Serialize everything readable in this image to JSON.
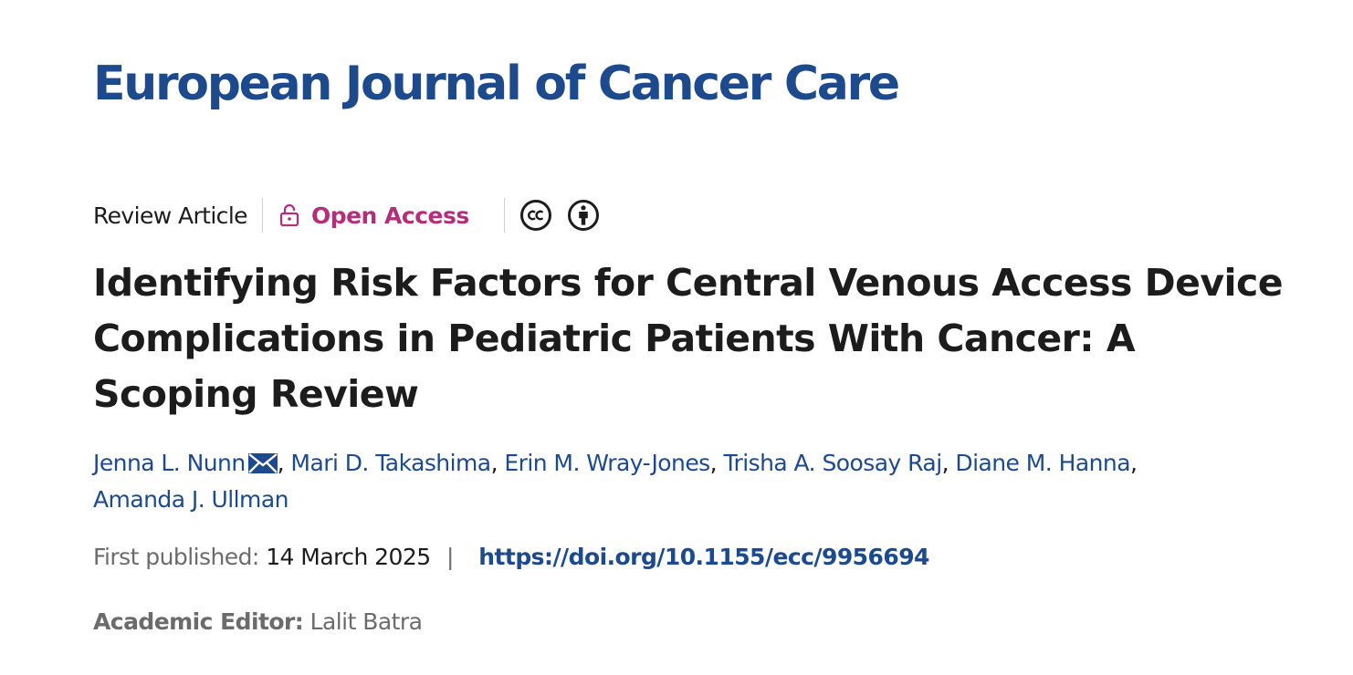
{
  "journal": {
    "title": "European Journal of Cancer Care",
    "brand_color": "#1c4a8c"
  },
  "meta": {
    "article_type": "Review Article",
    "open_access_label": "Open Access",
    "open_access_icon": "unlock-icon",
    "open_access_color": "#b22f7c",
    "license_icons": [
      "creative-commons-icon",
      "attribution-icon"
    ]
  },
  "article": {
    "title": "Identifying Risk Factors for Central Venous Access Device Complications in Pediatric Patients With Cancer: A Scoping Review"
  },
  "authors": [
    {
      "name": "Jenna L. Nunn",
      "corresponding": true
    },
    {
      "name": "Mari D. Takashima"
    },
    {
      "name": "Erin M. Wray-Jones"
    },
    {
      "name": "Trisha A. Soosay Raj"
    },
    {
      "name": "Diane M. Hanna"
    },
    {
      "name": "Amanda J. Ullman"
    }
  ],
  "publication": {
    "first_published_label": "First published:",
    "first_published_date": "14 March 2025",
    "separator": "|",
    "doi": "https://doi.org/10.1155/ecc/9956694"
  },
  "editor": {
    "label": "Academic Editor:",
    "name": "Lalit Batra"
  }
}
